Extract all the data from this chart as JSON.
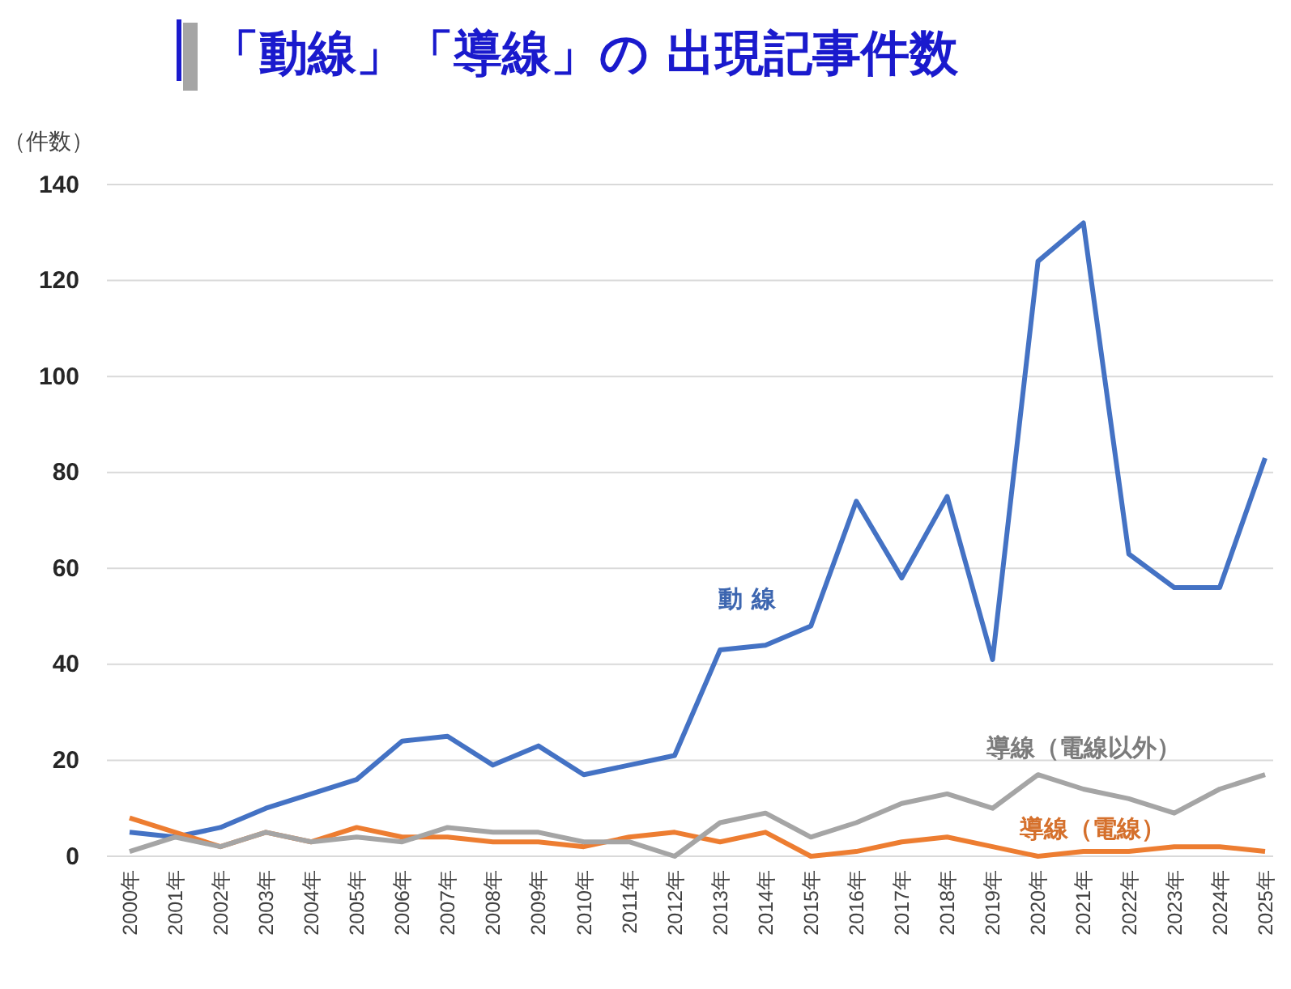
{
  "chart_data": {
    "type": "line",
    "title": "「動線」「導線」の 出現記事件数",
    "ylabel": "（件数）",
    "categories": [
      "2000年",
      "2001年",
      "2002年",
      "2003年",
      "2004年",
      "2005年",
      "2006年",
      "2007年",
      "2008年",
      "2009年",
      "2010年",
      "2011年",
      "2012年",
      "2013年",
      "2014年",
      "2015年",
      "2016年",
      "2017年",
      "2018年",
      "2019年",
      "2020年",
      "2021年",
      "2022年",
      "2023年",
      "2024年",
      "2025年"
    ],
    "series": [
      {
        "name": "動 線",
        "color": "#4472c4",
        "values": [
          5,
          4,
          6,
          10,
          13,
          16,
          24,
          25,
          19,
          23,
          17,
          19,
          21,
          43,
          44,
          48,
          74,
          58,
          75,
          41,
          124,
          132,
          63,
          56,
          56,
          83
        ]
      },
      {
        "name": "導線（電線）",
        "color": "#ed7d31",
        "values": [
          8,
          5,
          2,
          5,
          3,
          6,
          4,
          4,
          3,
          3,
          2,
          4,
          5,
          3,
          5,
          0,
          1,
          3,
          4,
          2,
          0,
          1,
          1,
          2,
          2,
          1
        ]
      },
      {
        "name": "導線（電線以外）",
        "color": "#a5a5a5",
        "values": [
          1,
          4,
          2,
          5,
          3,
          4,
          3,
          6,
          5,
          5,
          3,
          3,
          0,
          7,
          9,
          4,
          7,
          11,
          13,
          10,
          17,
          14,
          12,
          9,
          14,
          17
        ]
      }
    ],
    "ylim": [
      0,
      140
    ],
    "yticks": [
      0,
      20,
      40,
      60,
      80,
      100,
      120,
      140
    ],
    "grid": "y",
    "legend": false,
    "marker": "none",
    "line_style": "solid"
  }
}
